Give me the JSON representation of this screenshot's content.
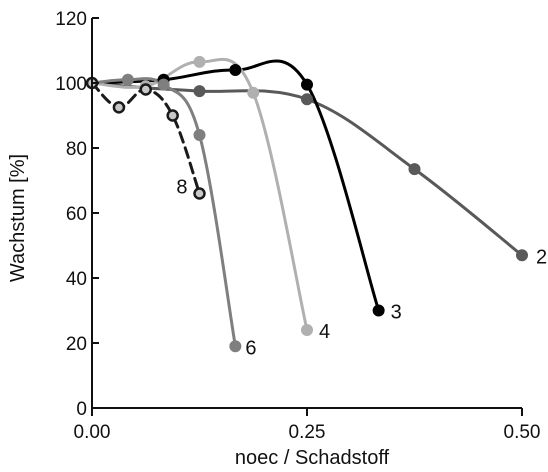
{
  "chart_data": {
    "type": "line",
    "xlabel": "noec / Schadstoff",
    "ylabel": "Wachstum [%]",
    "xlim": [
      0,
      0.5
    ],
    "ylim": [
      0,
      120
    ],
    "x_ticks": [
      0,
      0.25,
      0.5
    ],
    "x_tick_labels": [
      "0.00",
      "0.25",
      "0.50"
    ],
    "y_ticks": [
      0,
      20,
      40,
      60,
      80,
      100,
      120
    ],
    "y_tick_labels": [
      "0",
      "20",
      "40",
      "60",
      "80",
      "100",
      "120"
    ],
    "grid": false,
    "legend": "none",
    "series": [
      {
        "name": "2",
        "color": "#595959",
        "dashed": false,
        "hollow_markers": false,
        "points": [
          [
            0,
            100
          ],
          [
            0.0625,
            98.5
          ],
          [
            0.125,
            97.5
          ],
          [
            0.25,
            95
          ],
          [
            0.375,
            73.5
          ],
          [
            0.5,
            47
          ]
        ]
      },
      {
        "name": "3",
        "color": "#000000",
        "dashed": false,
        "hollow_markers": false,
        "points": [
          [
            0,
            100
          ],
          [
            0.0833,
            101
          ],
          [
            0.1667,
            104
          ],
          [
            0.25,
            99.5
          ],
          [
            0.3333,
            30
          ]
        ]
      },
      {
        "name": "4",
        "color": "#b0b0b0",
        "dashed": false,
        "hollow_markers": false,
        "points": [
          [
            0,
            100
          ],
          [
            0.0625,
            99
          ],
          [
            0.125,
            106.5
          ],
          [
            0.1875,
            97
          ],
          [
            0.25,
            24
          ]
        ]
      },
      {
        "name": "6",
        "color": "#7f7f7f",
        "dashed": false,
        "hollow_markers": false,
        "points": [
          [
            0,
            100
          ],
          [
            0.0417,
            101
          ],
          [
            0.0833,
            99.5
          ],
          [
            0.125,
            84
          ],
          [
            0.1667,
            19
          ]
        ]
      },
      {
        "name": "8",
        "color": "#1a1a1a",
        "dashed": true,
        "hollow_markers": true,
        "points": [
          [
            0,
            100
          ],
          [
            0.0313,
            92.5
          ],
          [
            0.0625,
            98
          ],
          [
            0.0938,
            90
          ],
          [
            0.125,
            66
          ]
        ]
      }
    ]
  }
}
